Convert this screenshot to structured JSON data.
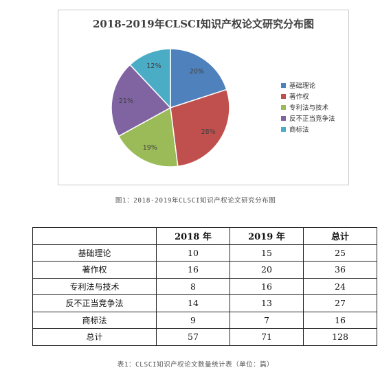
{
  "chart_data": {
    "type": "pie",
    "title": "2018-2019年CLSCI知识产权论文研究分布图",
    "categories": [
      "基础理论",
      "著作权",
      "专利法与技术",
      "反不正当竞争法",
      "商标法"
    ],
    "values": [
      20,
      28,
      19,
      21,
      12
    ],
    "value_labels": [
      "20%",
      "28%",
      "19%",
      "21%",
      "12%"
    ],
    "colors": [
      "#4f81bd",
      "#c0504d",
      "#9bbb59",
      "#8064a2",
      "#4bacc6"
    ],
    "legend_position": "right"
  },
  "figure_caption": "图1：2018-2019年CLSCI知识产权论文研究分布图",
  "table": {
    "headers": [
      "",
      "2018 年",
      "2019 年",
      "总计"
    ],
    "rows": [
      [
        "基础理论",
        "10",
        "15",
        "25"
      ],
      [
        "著作权",
        "16",
        "20",
        "36"
      ],
      [
        "专利法与技术",
        "8",
        "16",
        "24"
      ],
      [
        "反不正当竞争法",
        "14",
        "13",
        "27"
      ],
      [
        "商标法",
        "9",
        "7",
        "16"
      ],
      [
        "总计",
        "57",
        "71",
        "128"
      ]
    ]
  },
  "table_caption": "表1：CLSCI知识产权论文数量统计表（单位：篇）"
}
